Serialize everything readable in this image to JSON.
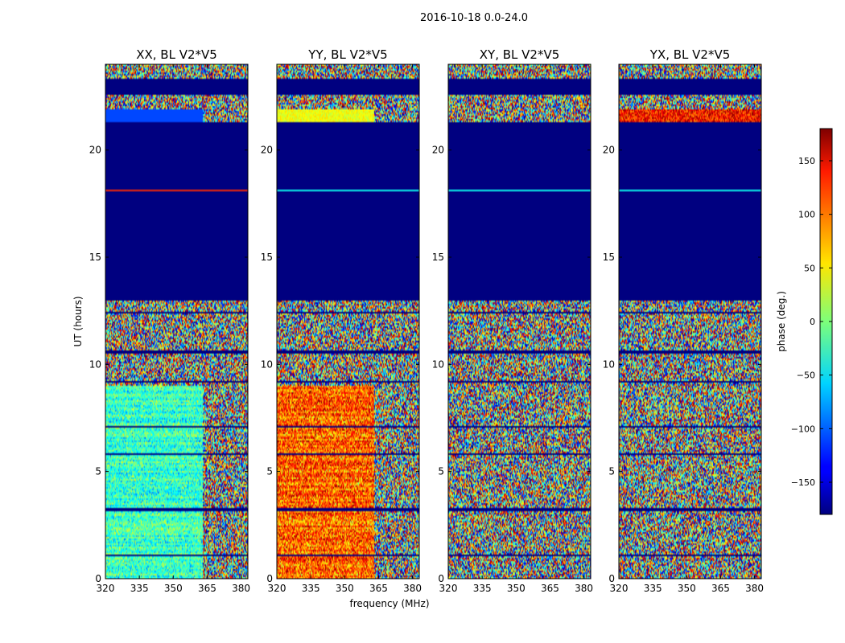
{
  "suptitle": "2016-10-18 0.0-24.0",
  "xlabel": "frequency (MHz)",
  "ylabel": "UT (hours)",
  "colorbar": {
    "label": "phase (deg.)",
    "range": [
      -180,
      180
    ],
    "ticks": [
      -150,
      -100,
      -50,
      0,
      50,
      100,
      150
    ],
    "colormap": "jet"
  },
  "chart_data": [
    {
      "type": "heatmap",
      "title": "XX, BL V2*V5",
      "xlim": [
        320,
        383
      ],
      "ylim": [
        0,
        24
      ],
      "xticks": [
        320,
        335,
        350,
        365,
        380
      ],
      "yticks": [
        0,
        5,
        10,
        15,
        20
      ],
      "phase_pattern": "green-cyan noise below 9h (phase near -20 deg) up to ~363 MHz, noisy above; flagged (-180) 13-21.3h except line at 18.1h"
    },
    {
      "type": "heatmap",
      "title": "YY, BL V2*V5",
      "xlim": [
        320,
        383
      ],
      "ylim": [
        0,
        24
      ],
      "xticks": [
        320,
        335,
        350,
        365,
        380
      ],
      "yticks": [
        0,
        5,
        10,
        15,
        20
      ],
      "phase_pattern": "orange-red noise below 9h (phase near 100 deg) up to ~363 MHz, noisy above; flagged 13-21.3h"
    },
    {
      "type": "heatmap",
      "title": "XY, BL V2*V5",
      "xlim": [
        320,
        383
      ],
      "ylim": [
        0,
        24
      ],
      "xticks": [
        320,
        335,
        350,
        365,
        380
      ],
      "yticks": [
        0,
        5,
        10,
        15,
        20
      ],
      "phase_pattern": "uniform random phase noise; flagged 13-21.3h"
    },
    {
      "type": "heatmap",
      "title": "YX, BL V2*V5",
      "xlim": [
        320,
        383
      ],
      "ylim": [
        0,
        24
      ],
      "xticks": [
        320,
        335,
        350,
        365,
        380
      ],
      "yticks": [
        0,
        5,
        10,
        15,
        20
      ],
      "phase_pattern": "uniform random phase noise; flagged 13-21.3h"
    }
  ]
}
